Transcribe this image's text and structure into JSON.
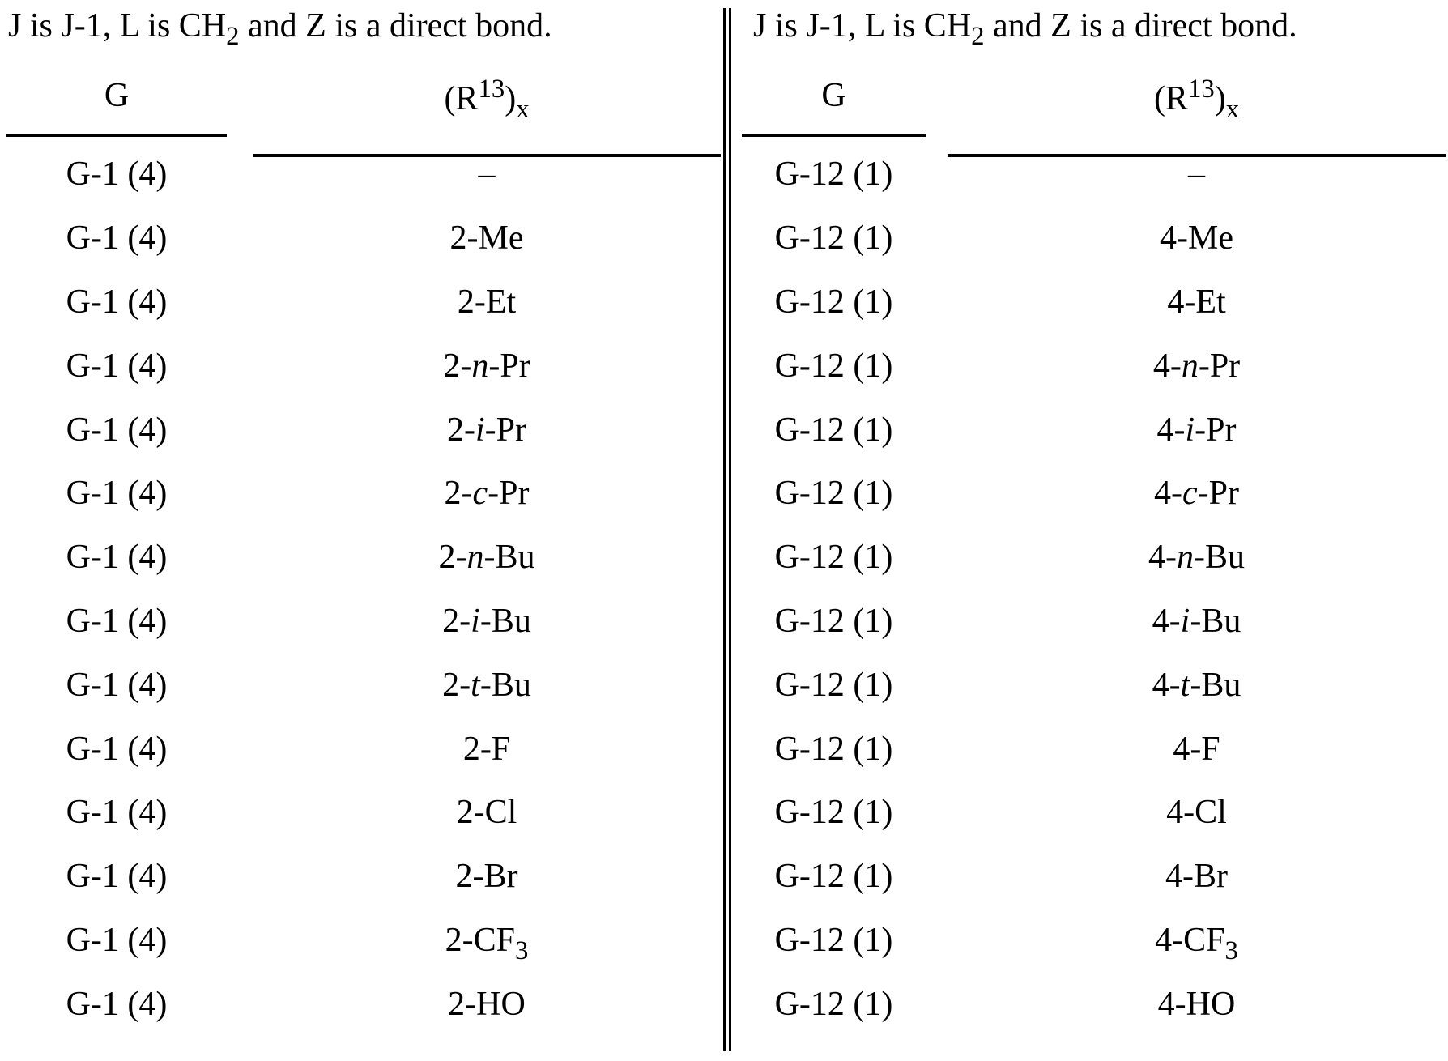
{
  "colors": {
    "text": "#000000",
    "background": "#ffffff",
    "rule": "#000000"
  },
  "panels": [
    {
      "id": "left",
      "intro_segments": [
        {
          "t": "J is J-1, L is CH"
        },
        {
          "t": "2",
          "style": "sub"
        },
        {
          "t": " and Z is a direct bond."
        }
      ],
      "columns": {
        "g_label": "G",
        "r_label_segments": [
          {
            "t": "(R"
          },
          {
            "t": "13",
            "style": "sup"
          },
          {
            "t": ")"
          },
          {
            "t": "x",
            "style": "sub"
          }
        ]
      },
      "rows": [
        {
          "g": "G-1 (4)",
          "r": [
            {
              "t": "–"
            }
          ]
        },
        {
          "g": "G-1 (4)",
          "r": [
            {
              "t": "2-Me"
            }
          ]
        },
        {
          "g": "G-1 (4)",
          "r": [
            {
              "t": "2-Et"
            }
          ]
        },
        {
          "g": "G-1 (4)",
          "r": [
            {
              "t": "2-"
            },
            {
              "t": "n",
              "style": "italic"
            },
            {
              "t": "-Pr"
            }
          ]
        },
        {
          "g": "G-1 (4)",
          "r": [
            {
              "t": "2-"
            },
            {
              "t": "i",
              "style": "italic"
            },
            {
              "t": "-Pr"
            }
          ]
        },
        {
          "g": "G-1 (4)",
          "r": [
            {
              "t": "2-"
            },
            {
              "t": "c",
              "style": "italic"
            },
            {
              "t": "-Pr"
            }
          ]
        },
        {
          "g": "G-1 (4)",
          "r": [
            {
              "t": "2-"
            },
            {
              "t": "n",
              "style": "italic"
            },
            {
              "t": "-Bu"
            }
          ]
        },
        {
          "g": "G-1 (4)",
          "r": [
            {
              "t": "2-"
            },
            {
              "t": "i",
              "style": "italic"
            },
            {
              "t": "-Bu"
            }
          ]
        },
        {
          "g": "G-1 (4)",
          "r": [
            {
              "t": "2-"
            },
            {
              "t": "t",
              "style": "italic"
            },
            {
              "t": "-Bu"
            }
          ]
        },
        {
          "g": "G-1 (4)",
          "r": [
            {
              "t": "2-F"
            }
          ]
        },
        {
          "g": "G-1 (4)",
          "r": [
            {
              "t": "2-Cl"
            }
          ]
        },
        {
          "g": "G-1 (4)",
          "r": [
            {
              "t": "2-Br"
            }
          ]
        },
        {
          "g": "G-1 (4)",
          "r": [
            {
              "t": "2-CF"
            },
            {
              "t": "3",
              "style": "sub"
            }
          ]
        },
        {
          "g": "G-1 (4)",
          "r": [
            {
              "t": "2-HO"
            }
          ]
        }
      ]
    },
    {
      "id": "right",
      "intro_segments": [
        {
          "t": "J is J-1, L is CH"
        },
        {
          "t": "2",
          "style": "sub"
        },
        {
          "t": " and Z is a direct bond."
        }
      ],
      "columns": {
        "g_label": "G",
        "r_label_segments": [
          {
            "t": "(R"
          },
          {
            "t": "13",
            "style": "sup"
          },
          {
            "t": ")"
          },
          {
            "t": "x",
            "style": "sub"
          }
        ]
      },
      "rows": [
        {
          "g": "G-12 (1)",
          "r": [
            {
              "t": "–"
            }
          ]
        },
        {
          "g": "G-12 (1)",
          "r": [
            {
              "t": "4-Me"
            }
          ]
        },
        {
          "g": "G-12 (1)",
          "r": [
            {
              "t": "4-Et"
            }
          ]
        },
        {
          "g": "G-12 (1)",
          "r": [
            {
              "t": "4-"
            },
            {
              "t": "n",
              "style": "italic"
            },
            {
              "t": "-Pr"
            }
          ]
        },
        {
          "g": "G-12 (1)",
          "r": [
            {
              "t": "4-"
            },
            {
              "t": "i",
              "style": "italic"
            },
            {
              "t": "-Pr"
            }
          ]
        },
        {
          "g": "G-12 (1)",
          "r": [
            {
              "t": "4-"
            },
            {
              "t": "c",
              "style": "italic"
            },
            {
              "t": "-Pr"
            }
          ]
        },
        {
          "g": "G-12 (1)",
          "r": [
            {
              "t": "4-"
            },
            {
              "t": "n",
              "style": "italic"
            },
            {
              "t": "-Bu"
            }
          ]
        },
        {
          "g": "G-12 (1)",
          "r": [
            {
              "t": "4-"
            },
            {
              "t": "i",
              "style": "italic"
            },
            {
              "t": "-Bu"
            }
          ]
        },
        {
          "g": "G-12 (1)",
          "r": [
            {
              "t": "4-"
            },
            {
              "t": "t",
              "style": "italic"
            },
            {
              "t": "-Bu"
            }
          ]
        },
        {
          "g": "G-12 (1)",
          "r": [
            {
              "t": "4-F"
            }
          ]
        },
        {
          "g": "G-12 (1)",
          "r": [
            {
              "t": "4-Cl"
            }
          ]
        },
        {
          "g": "G-12 (1)",
          "r": [
            {
              "t": "4-Br"
            }
          ]
        },
        {
          "g": "G-12 (1)",
          "r": [
            {
              "t": "4-CF"
            },
            {
              "t": "3",
              "style": "sub"
            }
          ]
        },
        {
          "g": "G-12 (1)",
          "r": [
            {
              "t": "4-HO"
            }
          ]
        }
      ]
    }
  ]
}
